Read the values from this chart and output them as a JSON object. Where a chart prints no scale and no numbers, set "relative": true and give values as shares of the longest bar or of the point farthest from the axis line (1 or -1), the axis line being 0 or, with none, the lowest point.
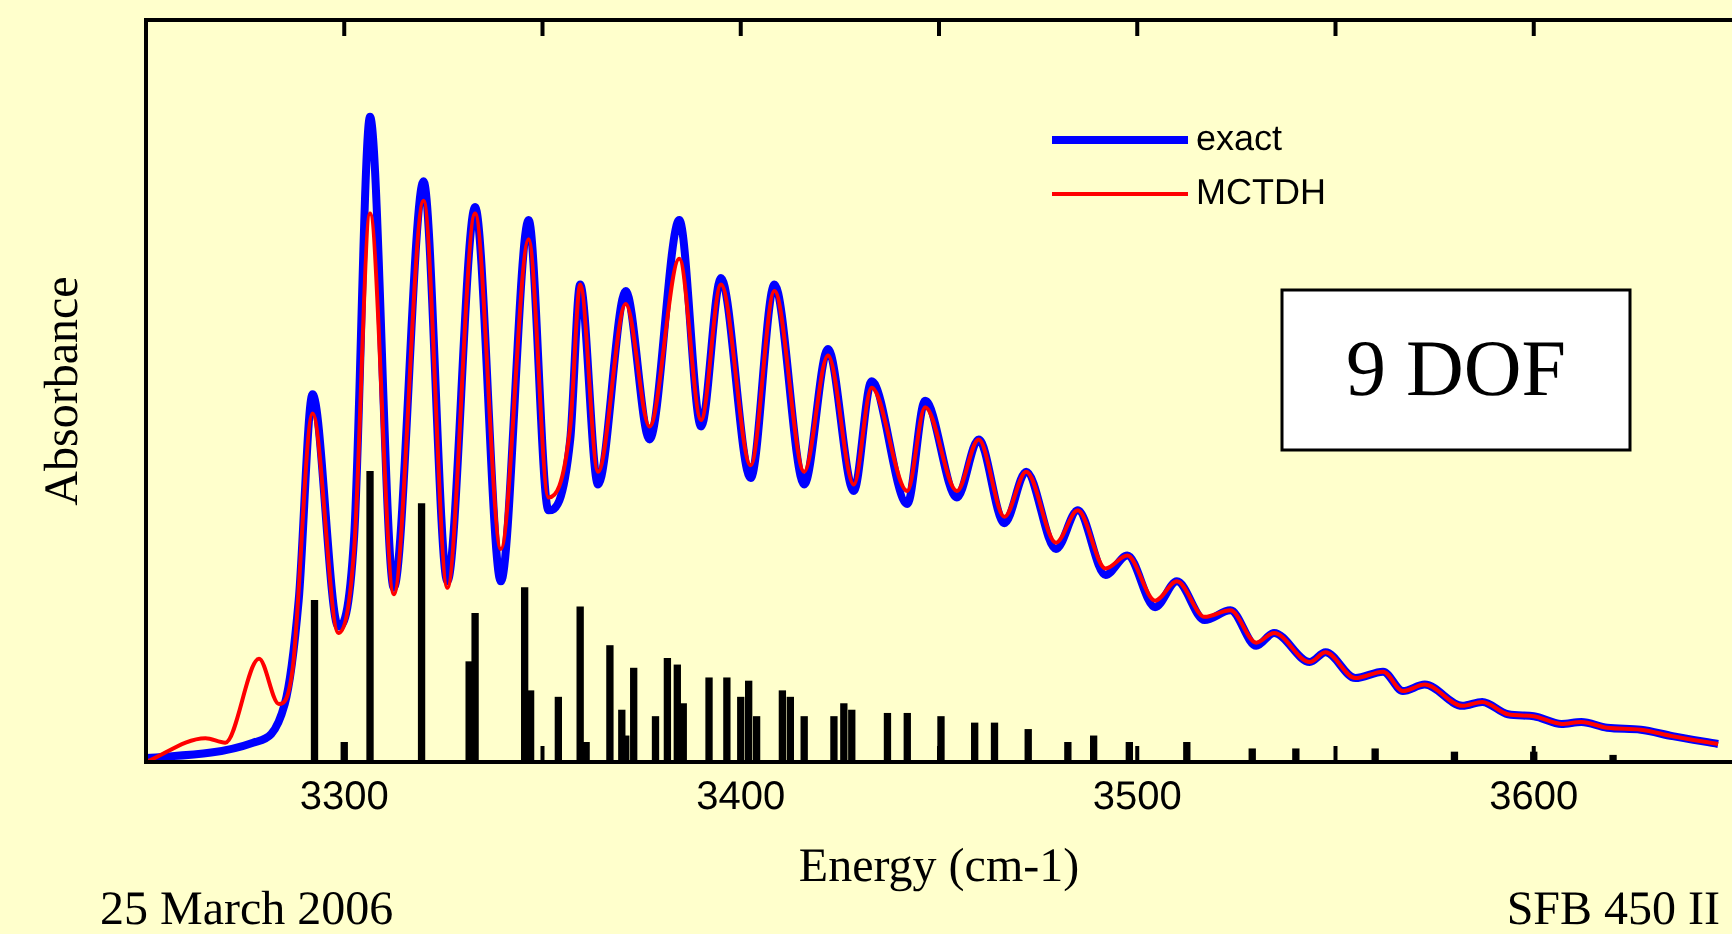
{
  "chart_data": {
    "type": "line",
    "relative": true,
    "xlabel": "Energy (cm-1)",
    "ylabel": "Absorbance",
    "legend": "top right",
    "xlim": [
      3250,
      3650
    ],
    "xticks": [
      {
        "value": 3250,
        "label": null
      },
      {
        "value": 3300,
        "label": "3300"
      },
      {
        "value": 3350,
        "label": null
      },
      {
        "value": 3400,
        "label": "3400"
      },
      {
        "value": 3450,
        "label": null
      },
      {
        "value": 3500,
        "label": "3500"
      },
      {
        "value": 3550,
        "label": null
      },
      {
        "value": 3600,
        "label": "3600"
      }
    ],
    "annotations": [
      "9 DOF",
      "25 March 2006",
      "SFB 450 II"
    ],
    "series": [
      {
        "name": "exact",
        "color": "#0000ff",
        "x": [
          3250,
          3277,
          3285,
          3288.5,
          3292,
          3298.5,
          3302.5,
          3306.5,
          3312.5,
          3320,
          3326,
          3333,
          3339.5,
          3346.5,
          3351.5,
          3357,
          3359.5,
          3364,
          3371,
          3377,
          3384.5,
          3390,
          3395,
          3402.5,
          3408.5,
          3416,
          3422,
          3428.5,
          3433,
          3442,
          3446.5,
          3454.5,
          3460,
          3466.5,
          3472,
          3479.5,
          3485,
          3492,
          3497.5,
          3504.5,
          3510,
          3517,
          3523.5,
          3530,
          3534.5,
          3543.5,
          3547.5,
          3555,
          3562,
          3567,
          3572.5,
          3582,
          3587,
          3593.5,
          3600,
          3607,
          3612,
          3618.5,
          3627,
          3635,
          3646.5
        ],
        "values": [
          0.006,
          0.03,
          0.09,
          0.25,
          0.57,
          0.21,
          0.35,
          1,
          0.27,
          0.9,
          0.28,
          0.86,
          0.28,
          0.84,
          0.39,
          0.5,
          0.74,
          0.43,
          0.73,
          0.5,
          0.84,
          0.52,
          0.75,
          0.44,
          0.74,
          0.43,
          0.64,
          0.42,
          0.59,
          0.4,
          0.56,
          0.41,
          0.5,
          0.37,
          0.45,
          0.33,
          0.39,
          0.29,
          0.32,
          0.24,
          0.28,
          0.22,
          0.235,
          0.18,
          0.2,
          0.155,
          0.17,
          0.13,
          0.14,
          0.11,
          0.12,
          0.087,
          0.093,
          0.074,
          0.071,
          0.059,
          0.062,
          0.053,
          0.05,
          0.04,
          0.028
        ]
      },
      {
        "name": "MCTDH",
        "color": "#ff0000",
        "x": [
          3250,
          3265,
          3270,
          3278.5,
          3283.5,
          3287,
          3292,
          3298.5,
          3302.5,
          3306.5,
          3312.5,
          3320,
          3326,
          3333,
          3339.5,
          3346.5,
          3351.5,
          3357,
          3359.5,
          3364,
          3371,
          3377,
          3384.5,
          3390,
          3395,
          3402.5,
          3408.5,
          3416,
          3422,
          3428.5,
          3433,
          3442,
          3446.5,
          3454.5,
          3460,
          3466.5,
          3472,
          3479.5,
          3485,
          3492,
          3497.5,
          3504.5,
          3510,
          3517,
          3523.5,
          3530,
          3534.5,
          3543.5,
          3547.5,
          3555,
          3562,
          3567,
          3572.5,
          3582,
          3587,
          3593.5,
          3600,
          3607,
          3612,
          3618.5,
          3627,
          3635,
          3646.5
        ],
        "values": [
          0,
          0.037,
          0.03,
          0.16,
          0.09,
          0.145,
          0.54,
          0.2,
          0.33,
          0.85,
          0.26,
          0.87,
          0.27,
          0.85,
          0.33,
          0.81,
          0.41,
          0.52,
          0.74,
          0.45,
          0.71,
          0.52,
          0.78,
          0.53,
          0.74,
          0.46,
          0.73,
          0.45,
          0.63,
          0.43,
          0.58,
          0.42,
          0.55,
          0.42,
          0.5,
          0.38,
          0.45,
          0.34,
          0.39,
          0.3,
          0.32,
          0.25,
          0.28,
          0.225,
          0.235,
          0.185,
          0.2,
          0.155,
          0.17,
          0.13,
          0.14,
          0.11,
          0.12,
          0.087,
          0.093,
          0.074,
          0.071,
          0.059,
          0.062,
          0.053,
          0.05,
          0.04,
          0.028
        ]
      },
      {
        "type": "bar",
        "color": "#000000",
        "x": [
          3292.5,
          3300,
          3306.5,
          3319.5,
          3331.5,
          3333,
          3345.5,
          3347,
          3354,
          3359.5,
          3361,
          3367,
          3370,
          3371,
          3373,
          3378.5,
          3381.5,
          3384,
          3385.5,
          3392,
          3396.5,
          3400,
          3402,
          3404,
          3410.5,
          3412.5,
          3416,
          3423.5,
          3426,
          3428,
          3437,
          3442,
          3450.5,
          3459,
          3464,
          3472.5,
          3482.5,
          3489,
          3498,
          3512.5,
          3529,
          3540,
          3560,
          3580,
          3600,
          3620
        ],
        "values": [
          0.25,
          0.03,
          0.45,
          0.4,
          0.155,
          0.23,
          0.27,
          0.11,
          0.1,
          0.24,
          0.03,
          0.18,
          0.08,
          0.04,
          0.145,
          0.07,
          0.16,
          0.15,
          0.09,
          0.13,
          0.13,
          0.1,
          0.125,
          0.07,
          0.11,
          0.1,
          0.07,
          0.07,
          0.09,
          0.08,
          0.075,
          0.075,
          0.07,
          0.06,
          0.06,
          0.05,
          0.03,
          0.04,
          0.03,
          0.03,
          0.02,
          0.02,
          0.02,
          0.015,
          0.015,
          0.01
        ]
      }
    ]
  }
}
